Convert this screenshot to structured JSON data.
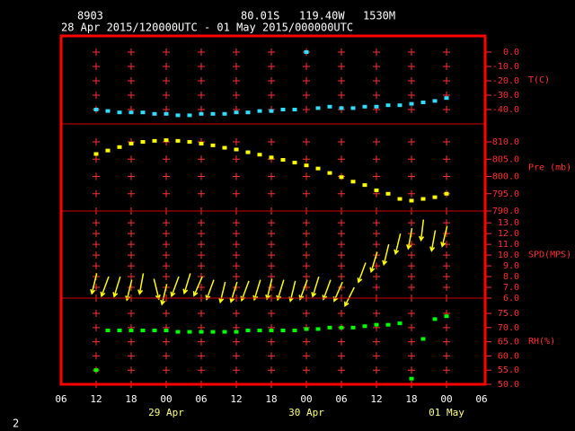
{
  "chart_data": {
    "type": "multi-panel",
    "station": "8903",
    "latitude": "80.01S",
    "longitude": "119.40W",
    "elevation": "1530M",
    "period": "28 Apr 2015/120000UTC - 01 May 2015/000000UTC",
    "page_number": "2",
    "xlim": [
      "2015-04-28T06:00",
      "2015-05-01T06:00"
    ],
    "xticks": [
      {
        "value": "2015-04-28T06:00",
        "label": "06"
      },
      {
        "value": "2015-04-28T12:00",
        "label": "12"
      },
      {
        "value": "2015-04-28T18:00",
        "label": "18"
      },
      {
        "value": "2015-04-29T00:00",
        "label": "00"
      },
      {
        "value": "2015-04-29T06:00",
        "label": "06"
      },
      {
        "value": "2015-04-29T12:00",
        "label": "12"
      },
      {
        "value": "2015-04-29T18:00",
        "label": "18"
      },
      {
        "value": "2015-04-30T00:00",
        "label": "00"
      },
      {
        "value": "2015-04-30T06:00",
        "label": "06"
      },
      {
        "value": "2015-04-30T12:00",
        "label": "12"
      },
      {
        "value": "2015-04-30T18:00",
        "label": "18"
      },
      {
        "value": "2015-05-01T00:00",
        "label": "00"
      },
      {
        "value": "2015-05-01T06:00",
        "label": "06"
      }
    ],
    "date_labels": [
      {
        "value": "2015-04-29T00:00",
        "label": "29 Apr"
      },
      {
        "value": "2015-04-30T00:00",
        "label": "30 Apr"
      },
      {
        "value": "2015-05-01T00:00",
        "label": "01 May"
      }
    ],
    "x": [
      "2015-04-28T12:00",
      "2015-04-28T14:00",
      "2015-04-28T16:00",
      "2015-04-28T18:00",
      "2015-04-28T20:00",
      "2015-04-28T22:00",
      "2015-04-29T00:00",
      "2015-04-29T02:00",
      "2015-04-29T04:00",
      "2015-04-29T06:00",
      "2015-04-29T08:00",
      "2015-04-29T10:00",
      "2015-04-29T12:00",
      "2015-04-29T14:00",
      "2015-04-29T16:00",
      "2015-04-29T18:00",
      "2015-04-29T20:00",
      "2015-04-29T22:00",
      "2015-04-30T00:00",
      "2015-04-30T02:00",
      "2015-04-30T04:00",
      "2015-04-30T06:00",
      "2015-04-30T08:00",
      "2015-04-30T10:00",
      "2015-04-30T12:00",
      "2015-04-30T14:00",
      "2015-04-30T16:00",
      "2015-04-30T18:00",
      "2015-04-30T20:00",
      "2015-04-30T22:00",
      "2015-05-01T00:00"
    ],
    "panels": [
      {
        "label": "T(C)",
        "color": "#33ddff",
        "ylim": [
          -50,
          11.25
        ],
        "yticks": [
          {
            "value": 0,
            "label": "0.0"
          },
          {
            "value": -10,
            "label": "-10.0"
          },
          {
            "value": -20,
            "label": "-20.0"
          },
          {
            "value": -30,
            "label": "-30.0"
          },
          {
            "value": -40,
            "label": "-40.0"
          }
        ],
        "values": [
          -40,
          -41,
          -42,
          -42,
          -42,
          -43,
          -43,
          -44,
          -44,
          -43,
          -43,
          -43,
          -42,
          -42,
          -41,
          -41,
          -40,
          -40,
          0,
          -39,
          -38,
          -39,
          -39,
          -38,
          -38,
          -37,
          -37,
          -36,
          -35,
          -34,
          -32
        ]
      },
      {
        "label": "Pre (mb)",
        "color": "#ffff00",
        "ylim": [
          790,
          815.2
        ],
        "yticks": [
          {
            "value": 810,
            "label": "810.0"
          },
          {
            "value": 805,
            "label": "805.0"
          },
          {
            "value": 800,
            "label": "800.0"
          },
          {
            "value": 795,
            "label": "795.0"
          },
          {
            "value": 790,
            "label": "790.0"
          }
        ],
        "values": [
          806.5,
          807.5,
          808.5,
          809.5,
          810,
          810.3,
          810.5,
          810.3,
          810,
          809.5,
          809,
          808.3,
          807.8,
          807,
          806.3,
          805.5,
          804.8,
          804,
          803.2,
          802.3,
          801,
          799.8,
          798.5,
          797.5,
          796,
          795,
          793.5,
          793,
          793.5,
          794,
          795
        ]
      },
      {
        "label": "SPD(MPS)",
        "color": "#ffff00",
        "ylim": [
          6,
          14.1
        ],
        "arrows": true,
        "yticks": [
          {
            "value": 13,
            "label": "13.0"
          },
          {
            "value": 12,
            "label": "12.0"
          },
          {
            "value": 11,
            "label": "11.0"
          },
          {
            "value": 10,
            "label": "10.0"
          },
          {
            "value": 9,
            "label": "9.0"
          },
          {
            "value": 8,
            "label": "8.0"
          },
          {
            "value": 7,
            "label": "7.0"
          },
          {
            "value": 6,
            "label": "6.0"
          }
        ],
        "values": [
          7.8,
          7.5,
          7.5,
          7.2,
          7.8,
          7.3,
          6.8,
          7.5,
          7.8,
          7.5,
          7.2,
          7.0,
          7.0,
          7.1,
          7.2,
          7.3,
          7.2,
          7.1,
          7.2,
          7.5,
          7.2,
          7.0,
          6.5,
          8.8,
          9.8,
          10.5,
          11.5,
          12,
          12.8,
          11.8,
          12.2
        ],
        "directions": [
          20,
          30,
          25,
          20,
          15,
          340,
          20,
          30,
          25,
          35,
          30,
          20,
          25,
          30,
          25,
          20,
          25,
          20,
          30,
          25,
          30,
          35,
          40,
          30,
          25,
          20,
          20,
          15,
          10,
          15,
          20
        ]
      },
      {
        "label": "RH(%)",
        "color": "#00ff00",
        "ylim": [
          50,
          80.4
        ],
        "yticks": [
          {
            "value": 75,
            "label": "75.0"
          },
          {
            "value": 70,
            "label": "70.0"
          },
          {
            "value": 65,
            "label": "65.0"
          },
          {
            "value": 60,
            "label": "60.0"
          },
          {
            "value": 55,
            "label": "55.0"
          },
          {
            "value": 50,
            "label": "50.0"
          }
        ],
        "values": [
          55,
          69,
          69,
          69,
          69,
          69,
          69,
          68.5,
          68.5,
          68.5,
          68.5,
          68.5,
          68.5,
          69,
          69,
          69,
          69,
          69,
          69.5,
          69.5,
          70,
          70,
          70,
          70.5,
          71,
          71,
          71.5,
          52,
          66,
          73,
          74
        ]
      }
    ]
  }
}
